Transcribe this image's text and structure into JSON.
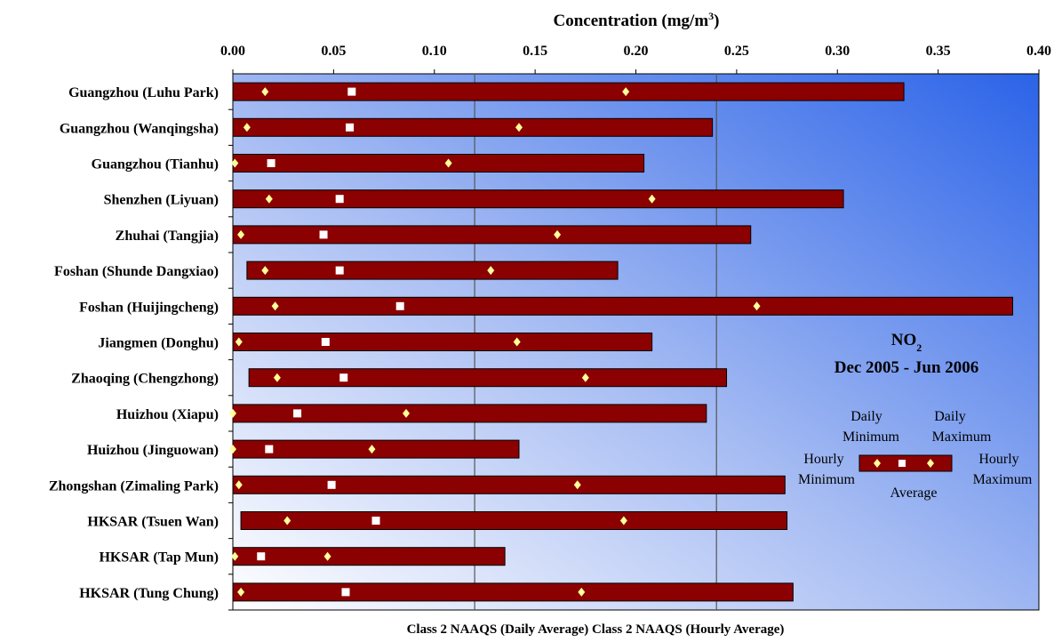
{
  "chart_data": {
    "type": "bar",
    "title_main": "Concentration (mg/m",
    "title_sup": "3",
    "title_close": ")",
    "xlim": [
      0,
      0.4
    ],
    "x_ticks": [
      "0.00",
      "0.05",
      "0.10",
      "0.15",
      "0.20",
      "0.25",
      "0.30",
      "0.35",
      "0.40"
    ],
    "x_tick_values": [
      0,
      0.05,
      0.1,
      0.15,
      0.2,
      0.25,
      0.3,
      0.35,
      0.4
    ],
    "grid": "none",
    "background": "gradient: blue (top-right) to white (bottom-left)",
    "reference_lines": [
      {
        "name": "Class 2 NAAQS (Daily Average)",
        "x": 0.12
      },
      {
        "name": "Class 2 NAAQS (Hourly Average)",
        "x": 0.24
      }
    ],
    "stations": [
      {
        "name": "Guangzhou (Luhu Park)",
        "hourly_min": 0.0,
        "daily_min": 0.016,
        "average": 0.059,
        "daily_max": 0.195,
        "hourly_max": 0.333
      },
      {
        "name": "Guangzhou (Wanqingsha)",
        "hourly_min": 0.0,
        "daily_min": 0.007,
        "average": 0.058,
        "daily_max": 0.142,
        "hourly_max": 0.238
      },
      {
        "name": "Guangzhou (Tianhu)",
        "hourly_min": 0.0,
        "daily_min": 0.001,
        "average": 0.019,
        "daily_max": 0.107,
        "hourly_max": 0.204
      },
      {
        "name": "Shenzhen (Liyuan)",
        "hourly_min": 0.0,
        "daily_min": 0.018,
        "average": 0.053,
        "daily_max": 0.208,
        "hourly_max": 0.303
      },
      {
        "name": "Zhuhai (Tangjia)",
        "hourly_min": 0.0,
        "daily_min": 0.004,
        "average": 0.045,
        "daily_max": 0.161,
        "hourly_max": 0.257
      },
      {
        "name": "Foshan (Shunde Dangxiao)",
        "hourly_min": 0.007,
        "daily_min": 0.016,
        "average": 0.053,
        "daily_max": 0.128,
        "hourly_max": 0.191
      },
      {
        "name": "Foshan (Huijingcheng)",
        "hourly_min": 0.0,
        "daily_min": 0.021,
        "average": 0.083,
        "daily_max": 0.26,
        "hourly_max": 0.387
      },
      {
        "name": "Jiangmen (Donghu)",
        "hourly_min": 0.0,
        "daily_min": 0.003,
        "average": 0.046,
        "daily_max": 0.141,
        "hourly_max": 0.208
      },
      {
        "name": "Zhaoqing (Chengzhong)",
        "hourly_min": 0.008,
        "daily_min": 0.022,
        "average": 0.055,
        "daily_max": 0.175,
        "hourly_max": 0.245
      },
      {
        "name": "Huizhou (Xiapu)",
        "hourly_min": 0.0,
        "daily_min": 0.0,
        "average": 0.032,
        "daily_max": 0.086,
        "hourly_max": 0.235
      },
      {
        "name": "Huizhou (Jinguowan)",
        "hourly_min": 0.0,
        "daily_min": 0.0,
        "average": 0.018,
        "daily_max": 0.069,
        "hourly_max": 0.142
      },
      {
        "name": "Zhongshan (Zimaling Park)",
        "hourly_min": 0.0,
        "daily_min": 0.003,
        "average": 0.049,
        "daily_max": 0.171,
        "hourly_max": 0.274
      },
      {
        "name": "HKSAR (Tsuen Wan)",
        "hourly_min": 0.004,
        "daily_min": 0.027,
        "average": 0.071,
        "daily_max": 0.194,
        "hourly_max": 0.275
      },
      {
        "name": "HKSAR (Tap Mun)",
        "hourly_min": 0.0,
        "daily_min": 0.001,
        "average": 0.014,
        "daily_max": 0.047,
        "hourly_max": 0.135
      },
      {
        "name": "HKSAR (Tung Chung)",
        "hourly_min": 0.0,
        "daily_min": 0.004,
        "average": 0.056,
        "daily_max": 0.173,
        "hourly_max": 0.278
      }
    ],
    "annotation": {
      "pollutant_main": "NO",
      "pollutant_sub": "2",
      "period": "Dec 2005 - Jun 2006"
    },
    "legend": {
      "daily_min_line1": "Daily",
      "daily_min_line2": "Minimum",
      "daily_max_line1": "Daily",
      "daily_max_line2": "Maximum",
      "hourly_min_line1": "Hourly",
      "hourly_min_line2": "Minimum",
      "hourly_max_line1": "Hourly",
      "hourly_max_line2": "Maximum",
      "average": "Average"
    },
    "colors": {
      "bar": "#8b0000",
      "diamond": "#ffff99",
      "average_marker": "#ffffff",
      "background_top": "#2b63e8",
      "background_bottom": "#ffffff"
    }
  }
}
